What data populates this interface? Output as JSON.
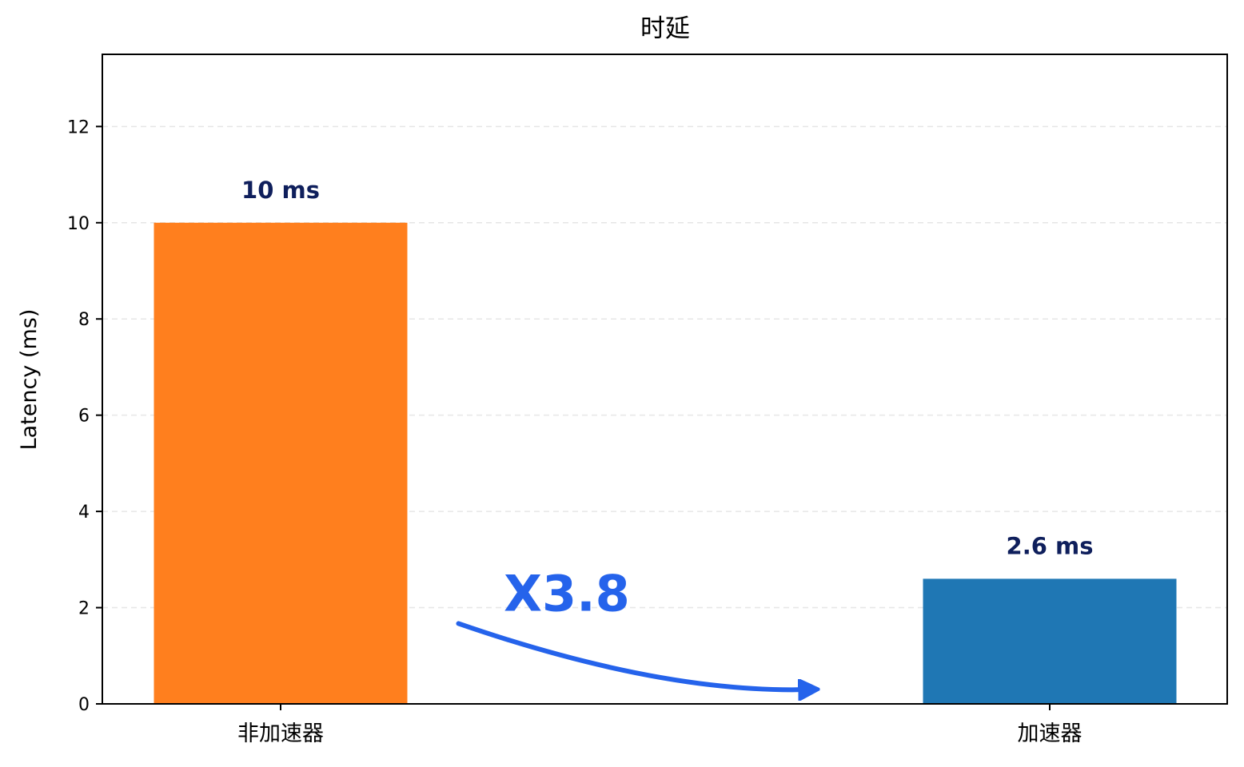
{
  "chart_data": {
    "type": "bar",
    "title": "时延",
    "xlabel": "",
    "ylabel": "Latency (ms)",
    "categories": [
      "非加速器",
      "加速器"
    ],
    "values": [
      10,
      2.6
    ],
    "data_labels": [
      "10 ms",
      "2.6 ms"
    ],
    "bar_colors": [
      "#ff7f1e",
      "#1f77b4"
    ],
    "ylim": [
      0,
      13.5
    ],
    "yticks": [
      0,
      2,
      4,
      6,
      8,
      10,
      12
    ],
    "grid": "horizontal-dashed",
    "annotation": {
      "text": "X3.8",
      "color": "#2563eb",
      "arrow_from_category": "非加速器",
      "arrow_to_category": "加速器"
    },
    "label_color": "#0f1f5c"
  }
}
